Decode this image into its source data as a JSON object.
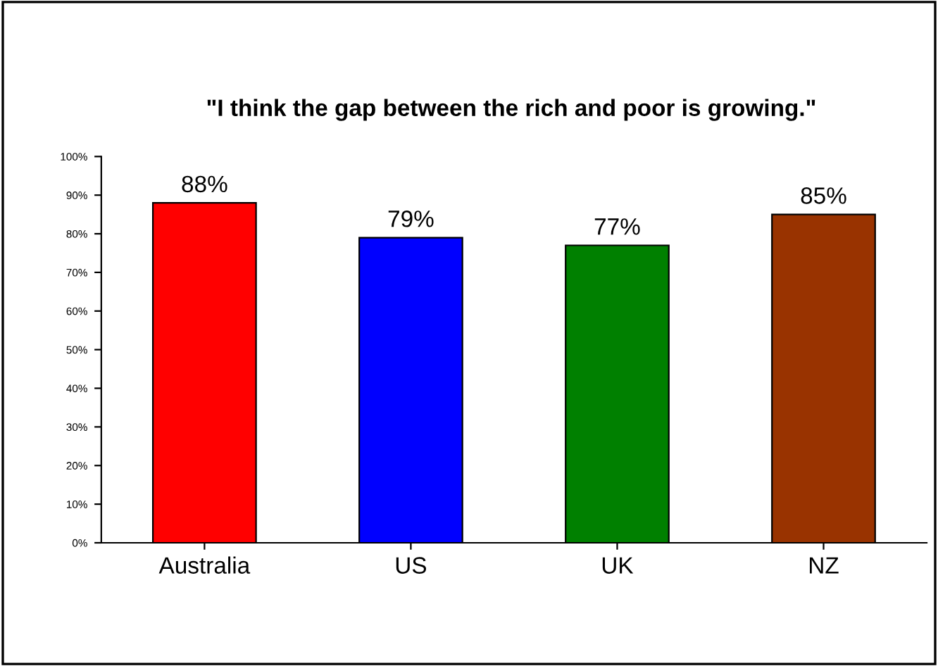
{
  "chart_data": {
    "type": "bar",
    "title": "\"I think the gap between the rich and poor is growing.\"",
    "categories": [
      "Australia",
      "US",
      "UK",
      "NZ"
    ],
    "values": [
      88,
      79,
      77,
      85
    ],
    "colors": [
      "#ff0000",
      "#0000ff",
      "#008000",
      "#993300"
    ],
    "value_labels": [
      "88%",
      "79%",
      "77%",
      "85%"
    ],
    "ylim": [
      0,
      100
    ],
    "yticks": [
      {
        "value": 0,
        "label": "0%"
      },
      {
        "value": 10,
        "label": "10%"
      },
      {
        "value": 20,
        "label": "20%"
      },
      {
        "value": 30,
        "label": "30%"
      },
      {
        "value": 40,
        "label": "40%"
      },
      {
        "value": 50,
        "label": "50%"
      },
      {
        "value": 60,
        "label": "60%"
      },
      {
        "value": 70,
        "label": "70%"
      },
      {
        "value": 80,
        "label": "80%"
      },
      {
        "value": 90,
        "label": "90%"
      },
      {
        "value": 100,
        "label": "100%"
      }
    ],
    "grid": false,
    "legend": false
  }
}
